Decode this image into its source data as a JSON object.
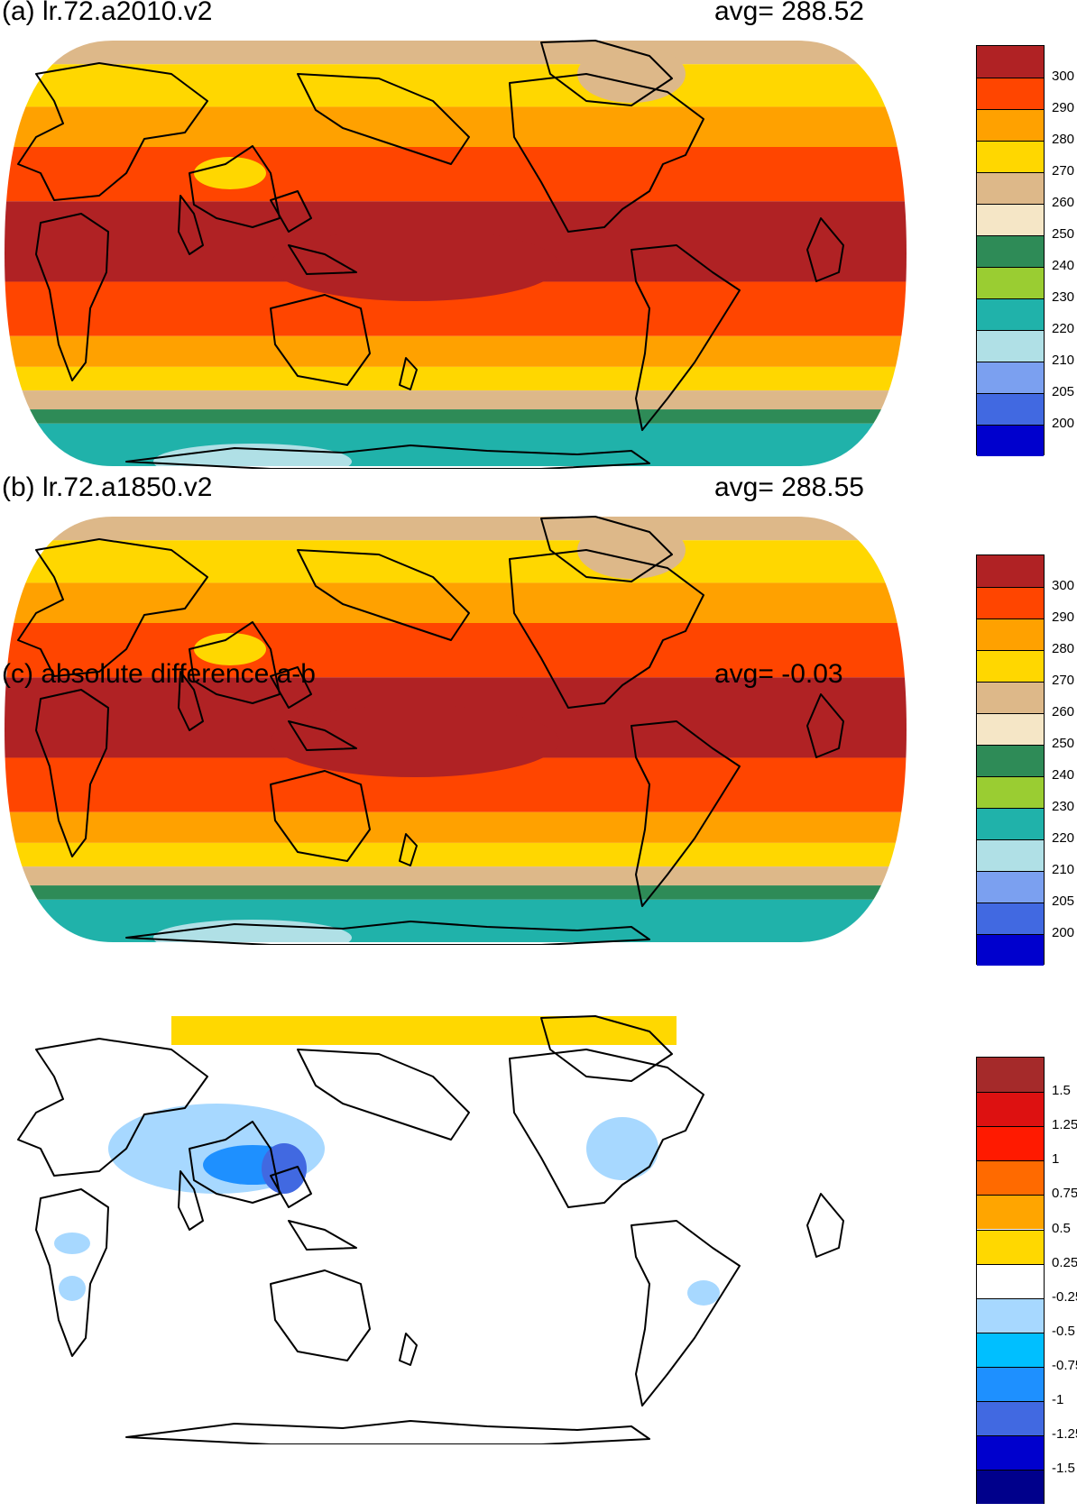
{
  "panels": [
    {
      "id": "a",
      "title": "(a) lr.72.a2010.v2",
      "avg": "avg=  288.52"
    },
    {
      "id": "b",
      "title": "(b) lr.72.a1850.v2",
      "avg": "avg=  288.55"
    },
    {
      "id": "c",
      "title": "(c) absolute difference a-b",
      "avg": "avg=   -0.03"
    }
  ],
  "colorbars": {
    "temperature": {
      "labels": [
        "300",
        "290",
        "280",
        "270",
        "260",
        "250",
        "240",
        "230",
        "220",
        "210",
        "205",
        "200"
      ],
      "colors": [
        "#b02224",
        "#ff4500",
        "#ffa100",
        "#ffd700",
        "#ddb889",
        "#f5e6c6",
        "#2e8b57",
        "#9acd32",
        "#20b2aa",
        "#b0e0e6",
        "#7ba0f0",
        "#4169e1",
        "#0000cd"
      ]
    },
    "difference": {
      "labels": [
        "1.5",
        "1.25",
        "1",
        "0.75",
        "0.5",
        "0.25",
        "-0.25",
        "-0.5",
        "-0.75",
        "-1",
        "-1.25",
        "-1.5"
      ],
      "colors": [
        "#a52a2a",
        "#dd1111",
        "#ff1a00",
        "#ff6a00",
        "#ffa500",
        "#ffd800",
        "#ffffff",
        "#a7d8ff",
        "#00bfff",
        "#1e90ff",
        "#4169e1",
        "#0000cd",
        "#00008b"
      ]
    }
  },
  "bands": {
    "temperature": [
      {
        "lat": [
          80,
          90
        ],
        "color": "#ddb889"
      },
      {
        "lat": [
          62,
          80
        ],
        "color": "#ffd700"
      },
      {
        "lat": [
          45,
          62
        ],
        "color": "#ffa100"
      },
      {
        "lat": [
          22,
          45
        ],
        "color": "#ff4500"
      },
      {
        "lat": [
          -12,
          22
        ],
        "color": "#b02224"
      },
      {
        "lat": [
          -35,
          -12
        ],
        "color": "#ff4500"
      },
      {
        "lat": [
          -48,
          -35
        ],
        "color": "#ffa100"
      },
      {
        "lat": [
          -58,
          -48
        ],
        "color": "#ffd700"
      },
      {
        "lat": [
          -66,
          -58
        ],
        "color": "#ddb889"
      },
      {
        "lat": [
          -72,
          -66
        ],
        "color": "#2e8b57"
      },
      {
        "lat": [
          -90,
          -72
        ],
        "color": "#20b2aa"
      }
    ]
  }
}
